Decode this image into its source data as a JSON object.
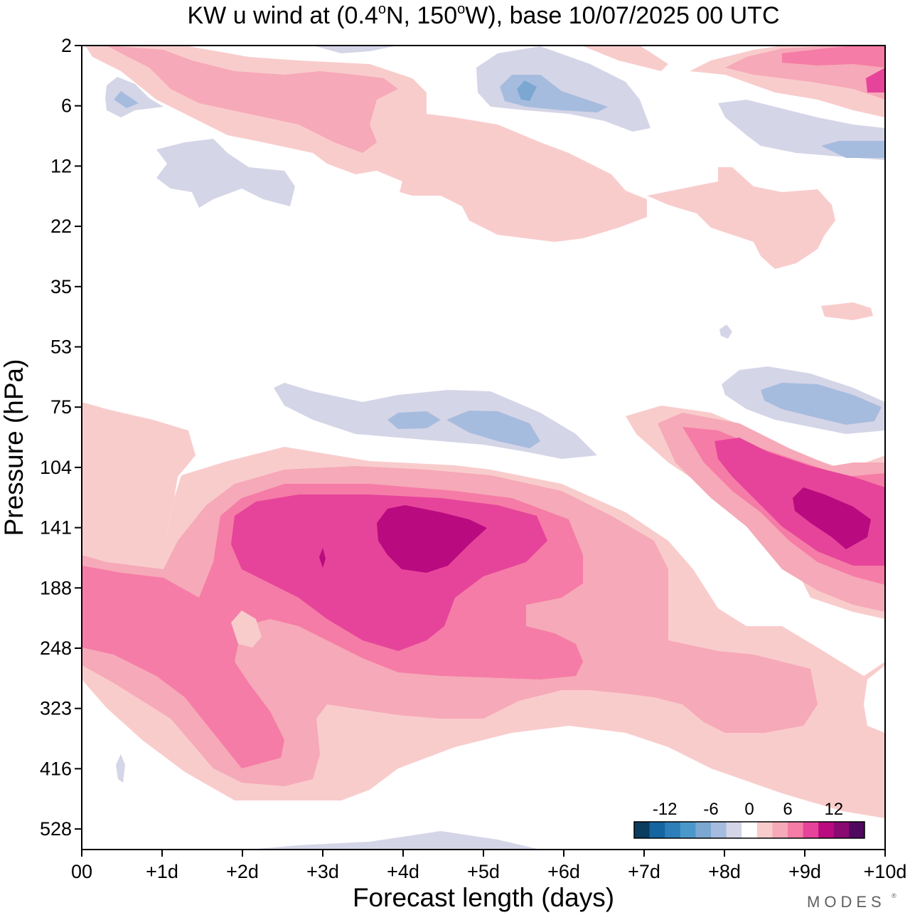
{
  "chart_data": {
    "type": "heatmap",
    "title": "KW u wind at (0.4°N, 150°W),  base 10/07/2025  00 UTC",
    "title_parts": {
      "prefix": "KW u wind at (0.4",
      "deg1": "o",
      "mid": "N, 150",
      "deg2": "o",
      "suffix": "W),  base 10/07/2025  00 UTC"
    },
    "xlabel": "Forecast length (days)",
    "ylabel": "Pressure (hPa)",
    "x_ticks": [
      "00",
      "+1d",
      "+2d",
      "+3d",
      "+4d",
      "+5d",
      "+6d",
      "+7d",
      "+8d",
      "+9d",
      "+10d"
    ],
    "xlim": [
      0,
      10
    ],
    "y_ticks": [
      "2",
      "6",
      "12",
      "22",
      "35",
      "53",
      "75",
      "104",
      "141",
      "188",
      "248",
      "323",
      "416",
      "528"
    ],
    "colorbar": {
      "labels": [
        "-12",
        "-6",
        "0",
        "6",
        "12"
      ],
      "levels": [
        -16,
        -14,
        -12,
        -10,
        -8,
        -6,
        -4,
        -2,
        2,
        4,
        6,
        8,
        10,
        12,
        14,
        16
      ],
      "colors": [
        "#0b3d5e",
        "#1565a0",
        "#2c7fb8",
        "#4a98c9",
        "#7ba7d1",
        "#a6bcde",
        "#d5d5e8",
        "#ffffff",
        "#f9cccc",
        "#f6a9b8",
        "#f57ca6",
        "#e6449a",
        "#b90b7f",
        "#8a0a72",
        "#4f0a5e"
      ]
    },
    "fields": [
      {
        "level": 2,
        "value_range": [
          2,
          4
        ],
        "color": "#f9cccc",
        "region": "upper troposphere 75-500 hPa, days 0-10"
      },
      {
        "level": 4,
        "value_range": [
          4,
          6
        ],
        "color": "#f6a9b8",
        "region": "upper troposphere 100-400 hPa"
      },
      {
        "level": 6,
        "value_range": [
          6,
          8
        ],
        "color": "#f57ca6",
        "region": "130-400 hPa, days 0-6 and 9-10"
      },
      {
        "level": 8,
        "value_range": [
          8,
          10
        ],
        "color": "#e6449a",
        "region": "125-240 hPa, days 2-6; 95-180 hPa, days 8-10"
      },
      {
        "level": 10,
        "value_range": [
          10,
          12
        ],
        "color": "#b90b7f",
        "region": "130-175 hPa near day 4; 120-160 hPa near day 9.5"
      },
      {
        "level": -2,
        "value_range": [
          -4,
          -2
        ],
        "color": "#d5d5e8",
        "region": "70-110 hPa, days 2.5-6.5; 65-90 hPa, days 8-10; stratosphere"
      },
      {
        "level": -4,
        "value_range": [
          -6,
          -4
        ],
        "color": "#a6bcde",
        "region": "75-95 hPa, days 4-5.6; 70-85 hPa, days 8.5-10; near 5 hPa, day 5.5"
      }
    ]
  },
  "watermark": "MODES"
}
